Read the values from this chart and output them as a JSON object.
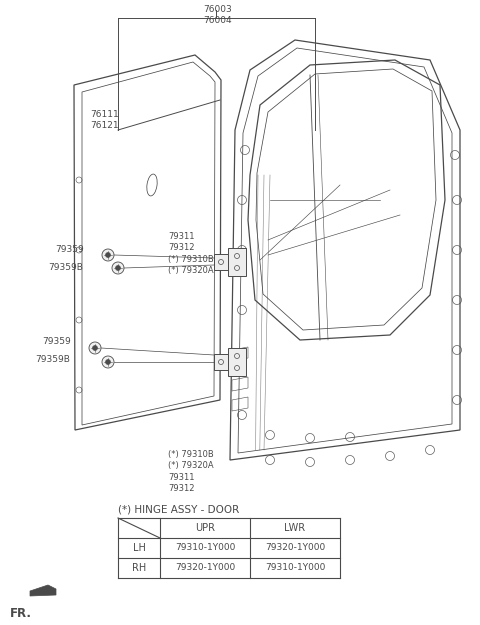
{
  "bg_color": "#ffffff",
  "label_76003_76004": "76003\n76004",
  "label_76111_76121": "76111\n76121",
  "label_upper_group": "79311\n79312\n(*) 79310B\n(*) 79320A",
  "label_lower_group": "(*) 79310B\n(*) 79320A\n79311\n79312",
  "label_79359_upper": "79359",
  "label_79359b_upper": "79359B",
  "label_79359_lower": "79359",
  "label_79359b_lower": "79359B",
  "hinge_label": "(*) HINGE ASSY - DOOR",
  "table_col2": "UPR",
  "table_col3": "LWR",
  "table_row1_label": "LH",
  "table_row1_col2": "79310-1Y000",
  "table_row1_col3": "79320-1Y000",
  "table_row2_label": "RH",
  "table_row2_col2": "79320-1Y000",
  "table_row2_col3": "79310-1Y000",
  "fr_label": "FR.",
  "line_color": "#4a4a4a",
  "font_size_small": 6.5,
  "font_size_table": 7.0,
  "font_size_hinge": 7.5,
  "font_size_fr": 8.5
}
